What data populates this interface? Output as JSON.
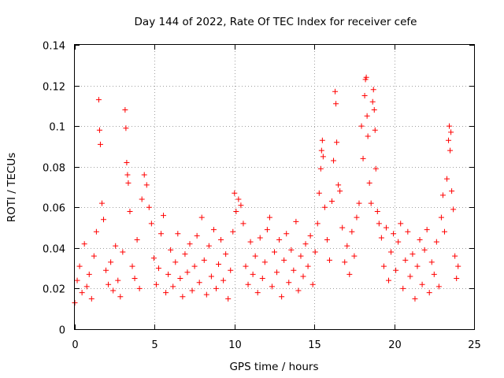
{
  "chart_data": {
    "type": "scatter",
    "title": "Day 144 of 2022, Rate Of TEC Index for receiver cefe",
    "xlabel": "GPS time / hours",
    "ylabel": "ROTI / TECUs",
    "xlim": [
      0,
      25
    ],
    "ylim": [
      0,
      0.14
    ],
    "xticks": [
      0,
      5,
      10,
      15,
      20,
      25
    ],
    "xtick_labels": [
      "0",
      "5",
      "10",
      "15",
      "20",
      "25"
    ],
    "yticks": [
      0,
      0.02,
      0.04,
      0.06,
      0.08,
      0.1,
      0.12,
      0.14
    ],
    "ytick_labels": [
      "0",
      "0.02",
      "0.04",
      "0.06",
      "0.08",
      "0.1",
      "0.12",
      "0.14"
    ],
    "grid": true,
    "marker": "+",
    "color": "#ff0000",
    "series": [
      {
        "name": "ROTI",
        "points": [
          [
            0.0,
            0.013
          ],
          [
            0.15,
            0.024
          ],
          [
            0.3,
            0.031
          ],
          [
            0.45,
            0.018
          ],
          [
            0.6,
            0.042
          ],
          [
            0.75,
            0.021
          ],
          [
            0.9,
            0.027
          ],
          [
            1.05,
            0.015
          ],
          [
            1.2,
            0.036
          ],
          [
            1.35,
            0.048
          ],
          [
            1.5,
            0.113
          ],
          [
            1.55,
            0.098
          ],
          [
            1.6,
            0.091
          ],
          [
            1.7,
            0.062
          ],
          [
            1.8,
            0.054
          ],
          [
            1.95,
            0.029
          ],
          [
            2.1,
            0.022
          ],
          [
            2.25,
            0.033
          ],
          [
            2.4,
            0.019
          ],
          [
            2.55,
            0.041
          ],
          [
            2.7,
            0.024
          ],
          [
            2.85,
            0.016
          ],
          [
            3.0,
            0.038
          ],
          [
            3.15,
            0.108
          ],
          [
            3.2,
            0.099
          ],
          [
            3.25,
            0.082
          ],
          [
            3.3,
            0.076
          ],
          [
            3.35,
            0.072
          ],
          [
            3.45,
            0.058
          ],
          [
            3.6,
            0.031
          ],
          [
            3.75,
            0.025
          ],
          [
            3.9,
            0.044
          ],
          [
            4.05,
            0.02
          ],
          [
            4.2,
            0.064
          ],
          [
            4.35,
            0.076
          ],
          [
            4.5,
            0.071
          ],
          [
            4.65,
            0.06
          ],
          [
            4.8,
            0.052
          ],
          [
            4.95,
            0.035
          ],
          [
            5.1,
            0.022
          ],
          [
            5.25,
            0.03
          ],
          [
            5.4,
            0.047
          ],
          [
            5.55,
            0.056
          ],
          [
            5.7,
            0.018
          ],
          [
            5.85,
            0.027
          ],
          [
            6.0,
            0.039
          ],
          [
            6.15,
            0.021
          ],
          [
            6.3,
            0.033
          ],
          [
            6.45,
            0.047
          ],
          [
            6.6,
            0.025
          ],
          [
            6.75,
            0.016
          ],
          [
            6.9,
            0.037
          ],
          [
            7.05,
            0.028
          ],
          [
            7.2,
            0.042
          ],
          [
            7.35,
            0.019
          ],
          [
            7.5,
            0.031
          ],
          [
            7.65,
            0.046
          ],
          [
            7.8,
            0.023
          ],
          [
            7.95,
            0.055
          ],
          [
            8.1,
            0.034
          ],
          [
            8.25,
            0.017
          ],
          [
            8.4,
            0.041
          ],
          [
            8.55,
            0.026
          ],
          [
            8.7,
            0.049
          ],
          [
            8.85,
            0.02
          ],
          [
            9.0,
            0.032
          ],
          [
            9.15,
            0.044
          ],
          [
            9.3,
            0.024
          ],
          [
            9.45,
            0.037
          ],
          [
            9.6,
            0.015
          ],
          [
            9.75,
            0.029
          ],
          [
            9.9,
            0.048
          ],
          [
            10.0,
            0.067
          ],
          [
            10.1,
            0.058
          ],
          [
            10.25,
            0.064
          ],
          [
            10.4,
            0.061
          ],
          [
            10.55,
            0.052
          ],
          [
            10.7,
            0.031
          ],
          [
            10.85,
            0.022
          ],
          [
            11.0,
            0.043
          ],
          [
            11.15,
            0.027
          ],
          [
            11.3,
            0.036
          ],
          [
            11.45,
            0.018
          ],
          [
            11.6,
            0.045
          ],
          [
            11.75,
            0.025
          ],
          [
            11.9,
            0.033
          ],
          [
            12.05,
            0.049
          ],
          [
            12.2,
            0.055
          ],
          [
            12.35,
            0.021
          ],
          [
            12.5,
            0.038
          ],
          [
            12.65,
            0.028
          ],
          [
            12.8,
            0.044
          ],
          [
            12.95,
            0.016
          ],
          [
            13.1,
            0.034
          ],
          [
            13.25,
            0.047
          ],
          [
            13.4,
            0.023
          ],
          [
            13.55,
            0.039
          ],
          [
            13.7,
            0.029
          ],
          [
            13.85,
            0.053
          ],
          [
            14.0,
            0.019
          ],
          [
            14.15,
            0.036
          ],
          [
            14.3,
            0.026
          ],
          [
            14.45,
            0.042
          ],
          [
            14.6,
            0.031
          ],
          [
            14.75,
            0.046
          ],
          [
            14.9,
            0.022
          ],
          [
            15.05,
            0.038
          ],
          [
            15.2,
            0.052
          ],
          [
            15.3,
            0.067
          ],
          [
            15.4,
            0.079
          ],
          [
            15.45,
            0.088
          ],
          [
            15.5,
            0.093
          ],
          [
            15.55,
            0.085
          ],
          [
            15.65,
            0.06
          ],
          [
            15.8,
            0.044
          ],
          [
            15.95,
            0.034
          ],
          [
            16.1,
            0.063
          ],
          [
            16.2,
            0.083
          ],
          [
            16.3,
            0.117
          ],
          [
            16.35,
            0.111
          ],
          [
            16.4,
            0.092
          ],
          [
            16.5,
            0.071
          ],
          [
            16.6,
            0.068
          ],
          [
            16.75,
            0.05
          ],
          [
            16.9,
            0.033
          ],
          [
            17.05,
            0.041
          ],
          [
            17.2,
            0.027
          ],
          [
            17.35,
            0.048
          ],
          [
            17.5,
            0.036
          ],
          [
            17.65,
            0.055
          ],
          [
            17.8,
            0.062
          ],
          [
            17.95,
            0.1
          ],
          [
            18.05,
            0.084
          ],
          [
            18.15,
            0.115
          ],
          [
            18.2,
            0.123
          ],
          [
            18.25,
            0.124
          ],
          [
            18.3,
            0.105
          ],
          [
            18.35,
            0.095
          ],
          [
            18.45,
            0.072
          ],
          [
            18.55,
            0.062
          ],
          [
            18.65,
            0.112
          ],
          [
            18.7,
            0.118
          ],
          [
            18.75,
            0.108
          ],
          [
            18.8,
            0.098
          ],
          [
            18.85,
            0.079
          ],
          [
            18.95,
            0.058
          ],
          [
            19.05,
            0.052
          ],
          [
            19.2,
            0.045
          ],
          [
            19.35,
            0.031
          ],
          [
            19.5,
            0.05
          ],
          [
            19.65,
            0.024
          ],
          [
            19.8,
            0.038
          ],
          [
            19.95,
            0.047
          ],
          [
            20.1,
            0.029
          ],
          [
            20.25,
            0.043
          ],
          [
            20.4,
            0.052
          ],
          [
            20.55,
            0.02
          ],
          [
            20.7,
            0.034
          ],
          [
            20.85,
            0.048
          ],
          [
            21.0,
            0.026
          ],
          [
            21.15,
            0.037
          ],
          [
            21.3,
            0.015
          ],
          [
            21.45,
            0.031
          ],
          [
            21.6,
            0.044
          ],
          [
            21.75,
            0.022
          ],
          [
            21.9,
            0.039
          ],
          [
            22.05,
            0.049
          ],
          [
            22.2,
            0.018
          ],
          [
            22.35,
            0.033
          ],
          [
            22.5,
            0.027
          ],
          [
            22.65,
            0.043
          ],
          [
            22.8,
            0.021
          ],
          [
            22.95,
            0.055
          ],
          [
            23.05,
            0.066
          ],
          [
            23.15,
            0.048
          ],
          [
            23.3,
            0.074
          ],
          [
            23.4,
            0.093
          ],
          [
            23.45,
            0.1
          ],
          [
            23.5,
            0.088
          ],
          [
            23.55,
            0.097
          ],
          [
            23.6,
            0.068
          ],
          [
            23.7,
            0.059
          ],
          [
            23.8,
            0.036
          ],
          [
            23.9,
            0.025
          ],
          [
            24.0,
            0.031
          ]
        ]
      }
    ]
  }
}
